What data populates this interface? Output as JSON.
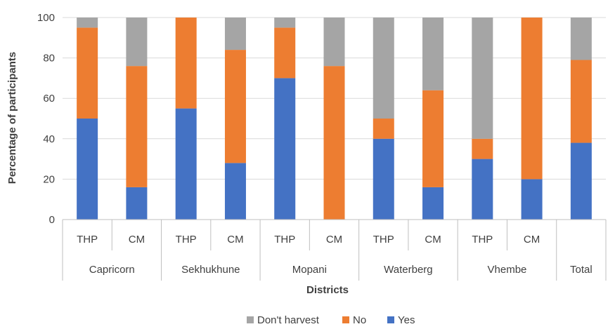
{
  "chart_data": {
    "type": "bar",
    "stacked": true,
    "ylabel": "Percentage of participants",
    "xlabel": "Districts",
    "ylim": [
      0,
      100
    ],
    "yticks": [
      0,
      20,
      40,
      60,
      80,
      100
    ],
    "grid": true,
    "legend_position": "bottom",
    "categories": [
      "THP",
      "CM",
      "THP",
      "CM",
      "THP",
      "CM",
      "THP",
      "CM",
      "THP",
      "CM",
      ""
    ],
    "groups": [
      {
        "name": "Capricorn",
        "count": 2
      },
      {
        "name": "Sekhukhune",
        "count": 2
      },
      {
        "name": "Mopani",
        "count": 2
      },
      {
        "name": "Waterberg",
        "count": 2
      },
      {
        "name": "Vhembe",
        "count": 2
      },
      {
        "name": "Total",
        "count": 1
      }
    ],
    "series": [
      {
        "name": "Yes",
        "color": "#4472C4",
        "values": [
          50,
          16,
          55,
          28,
          70,
          0,
          40,
          16,
          30,
          20,
          38
        ]
      },
      {
        "name": "No",
        "color": "#ED7D31",
        "values": [
          45,
          60,
          45,
          56,
          25,
          76,
          10,
          48,
          10,
          80,
          41
        ]
      },
      {
        "name": "Don't harvest",
        "color": "#A5A5A5",
        "values": [
          5,
          24,
          0,
          16,
          5,
          24,
          50,
          36,
          60,
          0,
          21
        ]
      }
    ],
    "legend_order": [
      "Don't harvest",
      "No",
      "Yes"
    ]
  }
}
